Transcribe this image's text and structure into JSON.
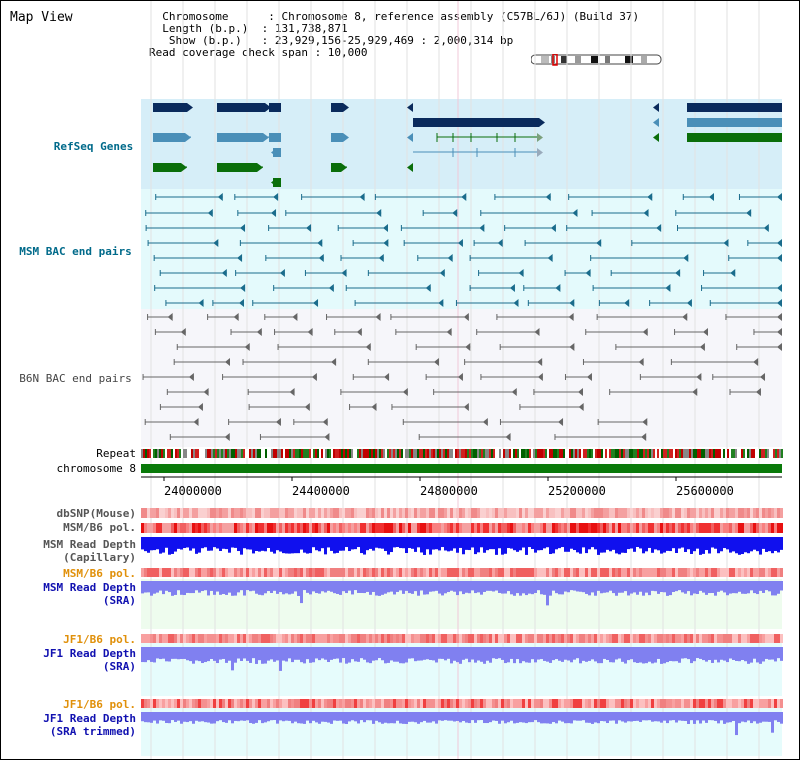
{
  "title": "Map View",
  "info": {
    "lines": [
      "  Chromosome      : Chromosome 8, reference assembly (C57BL/6J) (Build 37)",
      "  Length (b.p.)  : 131,738,871",
      "   Show (b.p.)   : 23,929,156-25,929,469 : 2,000,314 bp",
      "Read coverage check span : 10,000"
    ]
  },
  "tracks": {
    "refseq": "RefSeq Genes",
    "msm_bac": "MSM BAC end pairs",
    "b6n_bac": "B6N BAC end pairs",
    "repeat": "Repeat",
    "chromosome": "chromosome 8",
    "dbsnp": "dbSNP(Mouse)",
    "msm_pol": "MSM/B6 pol.",
    "msm_depth_cap_1": "MSM Read Depth",
    "msm_depth_cap_2": "(Capillary)",
    "msm_pol2": "MSM/B6 pol.",
    "msm_depth_sra_1": "MSM Read Depth",
    "msm_depth_sra_2": "(SRA)",
    "jf1_pol": "JF1/B6 pol.",
    "jf1_depth_sra_1": "JF1 Read Depth",
    "jf1_depth_sra_2": "(SRA)",
    "jf1_pol2": "JF1/B6 pol.",
    "jf1_depth_trim_1": "JF1 Read Depth",
    "jf1_depth_trim_2": "(SRA trimmed)"
  },
  "axis": {
    "ticks": [
      "24000000",
      "24400000",
      "24800000",
      "25200000",
      "25600000"
    ]
  },
  "colors": {
    "gene_navy": "#0a2a5c",
    "gene_steel": "#4a8fb8",
    "gene_green": "#0a6e0a",
    "refseq_bg": "#d6eef8",
    "bac_bg": "#e4fafc",
    "b6n_bg": "#f6f6fa",
    "chrom_green": "#0a7a0a",
    "depth_blue": "#1010ee",
    "depth_light": "#8080f0",
    "label_teal": "#006a8a",
    "label_blue": "#1010b0",
    "label_orange": "#e0900a"
  }
}
